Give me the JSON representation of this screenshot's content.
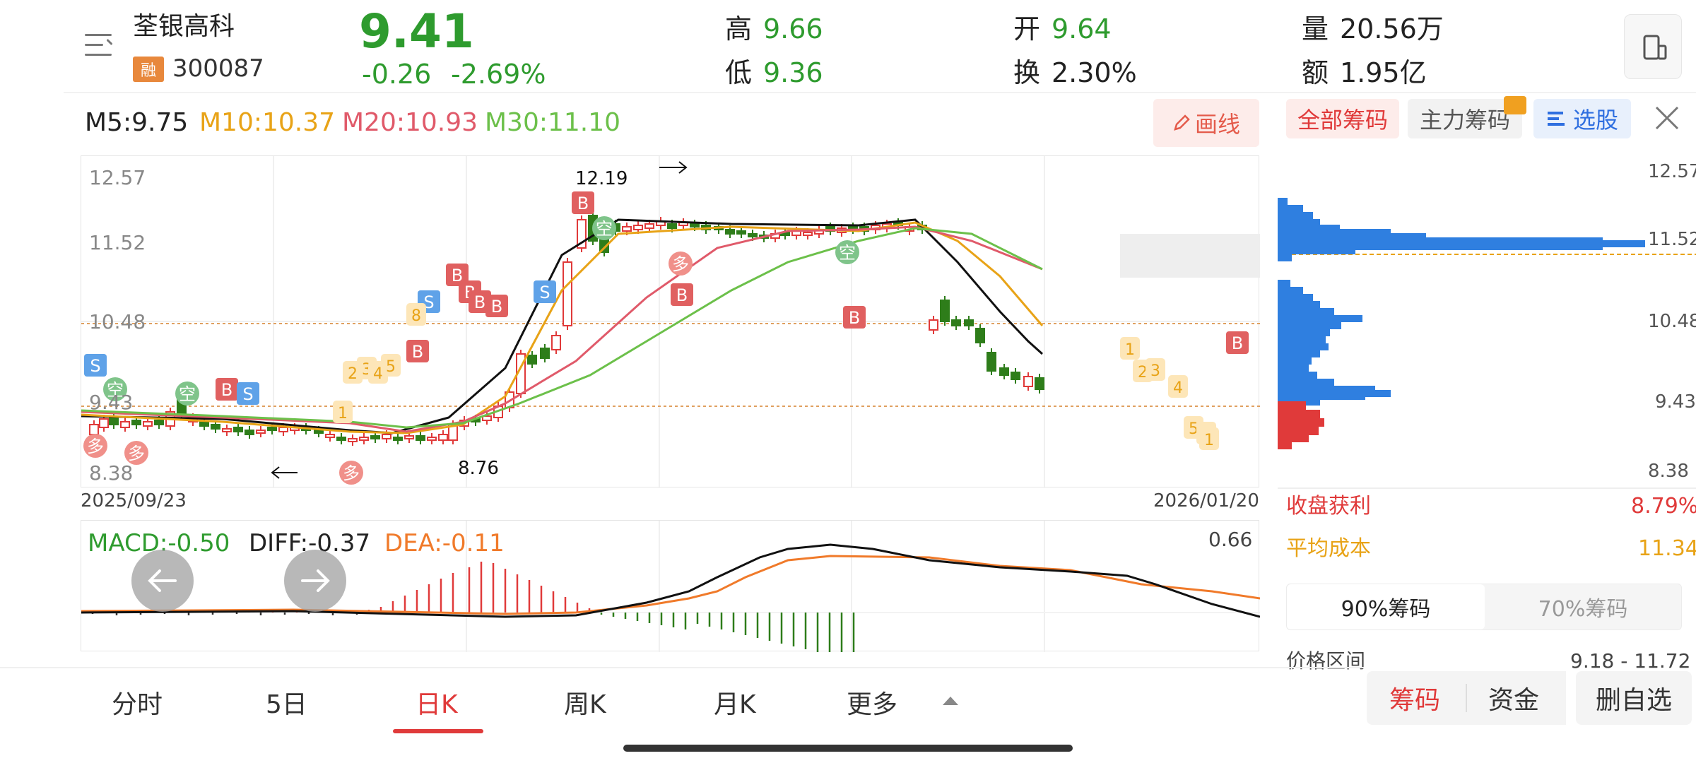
{
  "stock": {
    "name": "荃银高科",
    "rong": "融",
    "code": "300087",
    "price": "9.41",
    "change": "-0.26",
    "change_pct": "-2.69%",
    "high_label": "高",
    "high": "9.66",
    "low_label": "低",
    "low": "9.36",
    "open_label": "开",
    "open": "9.64",
    "turnover_label": "换",
    "turnover": "2.30%",
    "volume_label": "量",
    "volume": "20.56万",
    "amount_label": "额",
    "amount": "1.95亿"
  },
  "ma": {
    "m5": "M5:9.75",
    "m10": "M10:10.37",
    "m20": "M20:10.93",
    "m30": "M30:11.10"
  },
  "draw_button": "画线",
  "kline": {
    "y_ticks": [
      "12.57",
      "11.52",
      "10.48",
      "9.43",
      "8.38"
    ],
    "start_date": "2025/09/23",
    "end_date": "2026/01/20",
    "high_marker": "12.19",
    "low_marker": "8.76"
  },
  "macd": {
    "macd": "MACD:-0.50",
    "diff": "DIFF:-0.37",
    "dea": "DEA:-0.11",
    "top_value": "0.66"
  },
  "right_panel": {
    "tab_all": "全部筹码",
    "tab_main": "主力筹码",
    "tab_pick": "选股",
    "y_ticks": [
      "12.57",
      "11.52",
      "10.48",
      "9.43",
      "8.38"
    ],
    "profit_label": "收盘获利",
    "profit_value": "8.79%",
    "avg_cost_label": "平均成本",
    "avg_cost_value": "11.34",
    "seg_90": "90%筹码",
    "seg_70": "70%筹码",
    "range_label": "价格区间",
    "range_value": "9.18 - 11.72"
  },
  "bottom_tabs": [
    "分时",
    "5日",
    "日K",
    "周K",
    "月K",
    "更多"
  ],
  "bottom_buttons": {
    "chip": "筹码",
    "fund": "资金",
    "remove": "删自选"
  },
  "signals": {
    "buy": "B",
    "sell": "S",
    "bull": "多",
    "bear": "空"
  },
  "colors": {
    "up": "#e03a3a",
    "down": "#2e7d1a",
    "ma5": "#111111",
    "ma10": "#e8a317",
    "ma20": "#e05a6a",
    "ma30": "#6cc04a",
    "chip_profit": "#e03a3a",
    "chip_loss": "#2f7fe0"
  }
}
